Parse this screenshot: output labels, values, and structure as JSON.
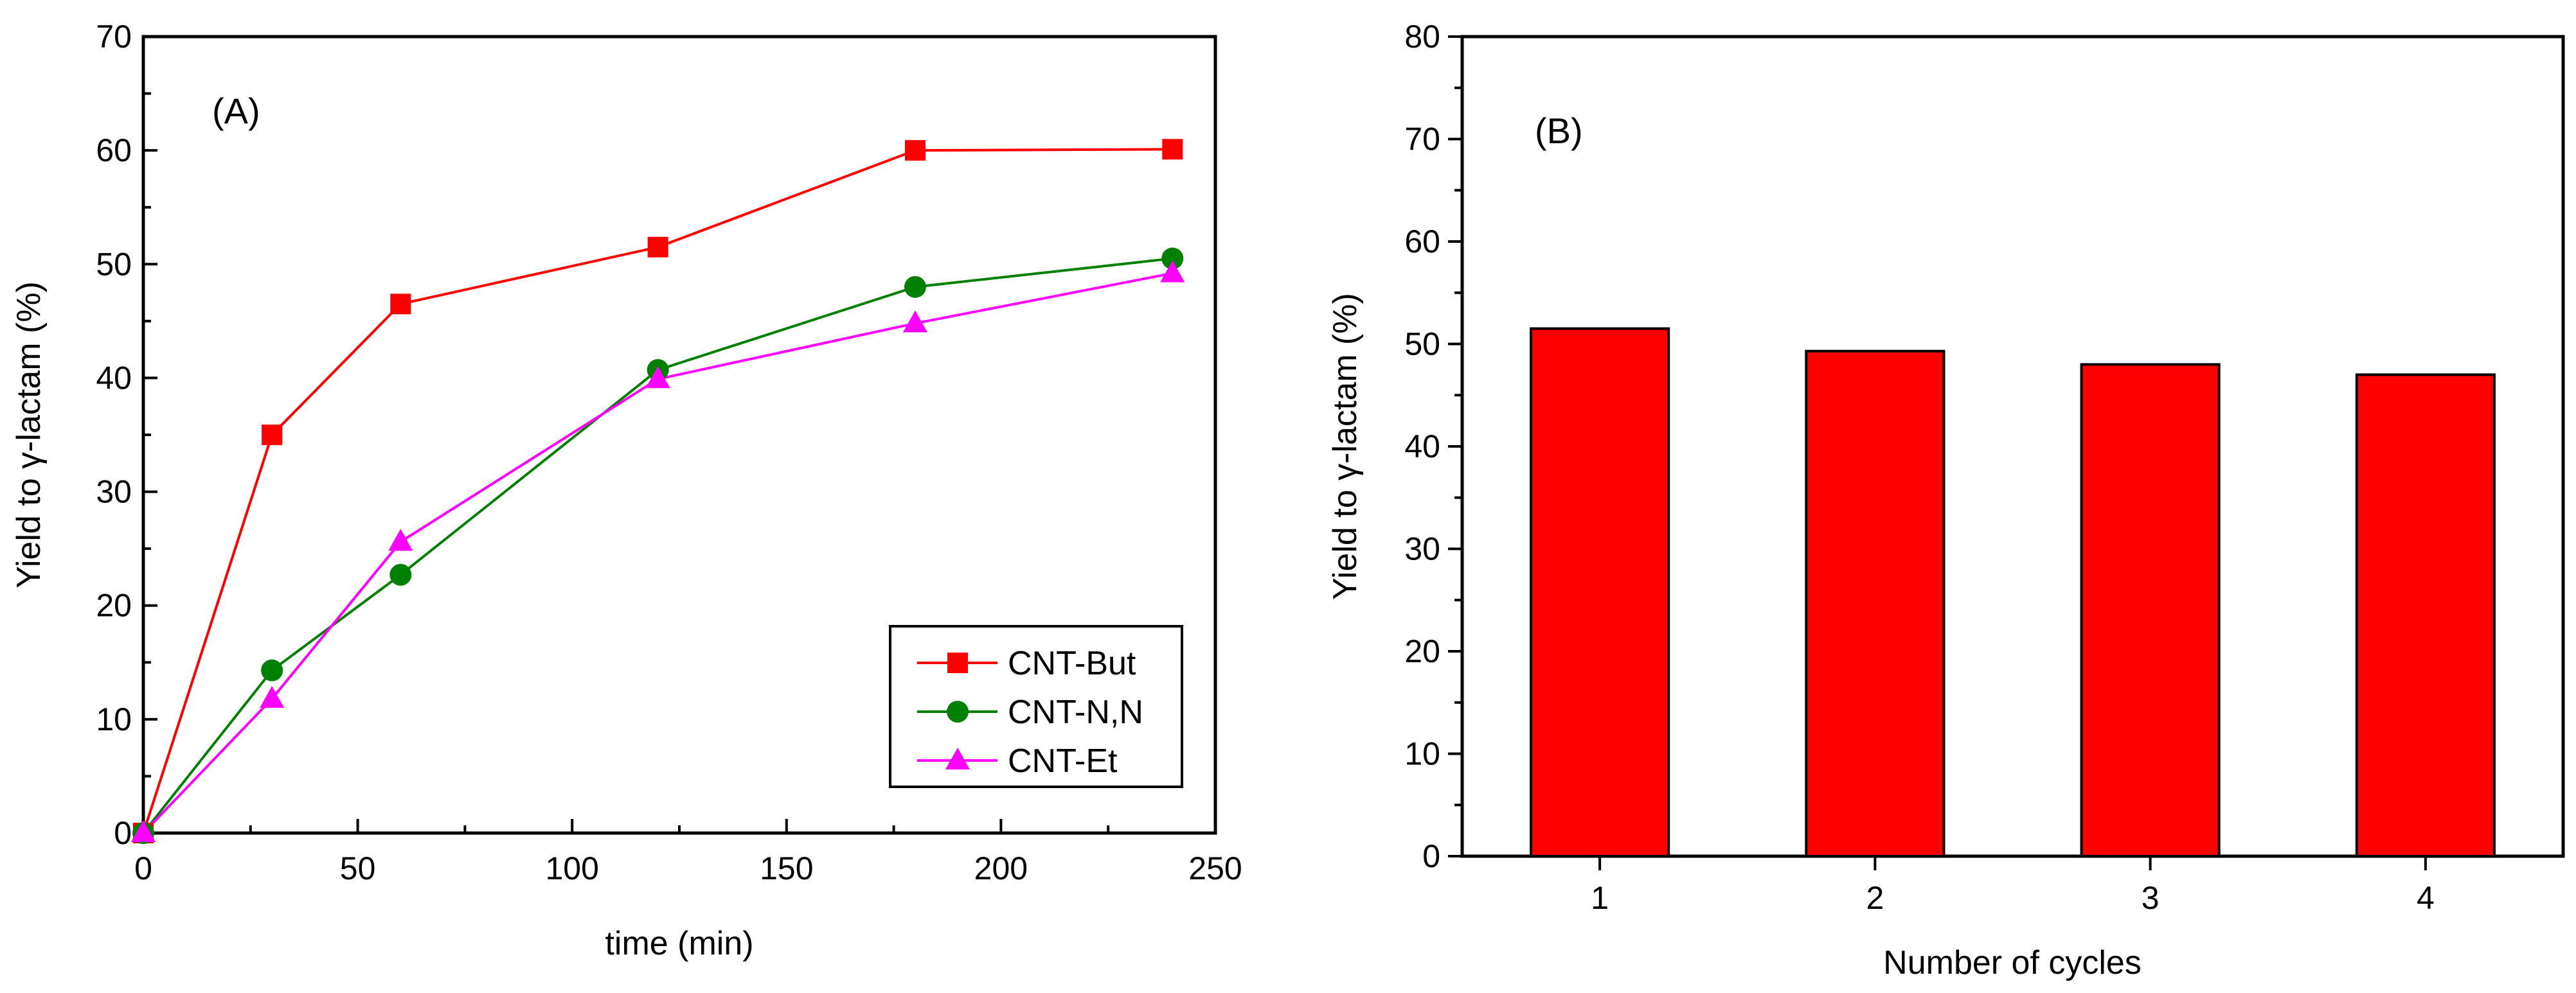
{
  "chart_data": [
    {
      "type": "line",
      "panel_label": "(A)",
      "xlabel": "time (min)",
      "ylabel": "Yield to γ-lactam (%)",
      "xlim": [
        0,
        250
      ],
      "ylim": [
        0,
        70
      ],
      "xticks": [
        "0",
        "50",
        "100",
        "150",
        "200",
        "250"
      ],
      "yticks": [
        "0",
        "10",
        "20",
        "30",
        "40",
        "50",
        "60",
        "70"
      ],
      "grid": false,
      "legend_position": "bottom-right",
      "series": [
        {
          "name": "CNT-But",
          "color": "#ff0000",
          "marker": "square",
          "x": [
            0,
            30,
            60,
            120,
            180,
            240
          ],
          "y": [
            0,
            35,
            46.5,
            51.5,
            60,
            60.1
          ]
        },
        {
          "name": "CNT-N,N",
          "color": "#008000",
          "marker": "circle",
          "x": [
            0,
            30,
            60,
            120,
            180,
            240
          ],
          "y": [
            0,
            14.3,
            22.7,
            40.7,
            48,
            50.5
          ]
        },
        {
          "name": "CNT-Et",
          "color": "#ff00ff",
          "marker": "triangle",
          "x": [
            0,
            30,
            60,
            120,
            180,
            240
          ],
          "y": [
            0,
            11.8,
            25.6,
            39.9,
            44.8,
            49.2
          ]
        }
      ]
    },
    {
      "type": "bar",
      "panel_label": "(B)",
      "xlabel": "Number of cycles",
      "ylabel": "Yield to γ-lactam (%)",
      "categories": [
        "1",
        "2",
        "3",
        "4"
      ],
      "values": [
        51.5,
        49.3,
        48,
        47
      ],
      "ylim": [
        0,
        80
      ],
      "yticks": [
        "0",
        "10",
        "20",
        "30",
        "40",
        "50",
        "60",
        "70",
        "80"
      ],
      "bar_color": "#ff0000",
      "grid": false
    }
  ]
}
